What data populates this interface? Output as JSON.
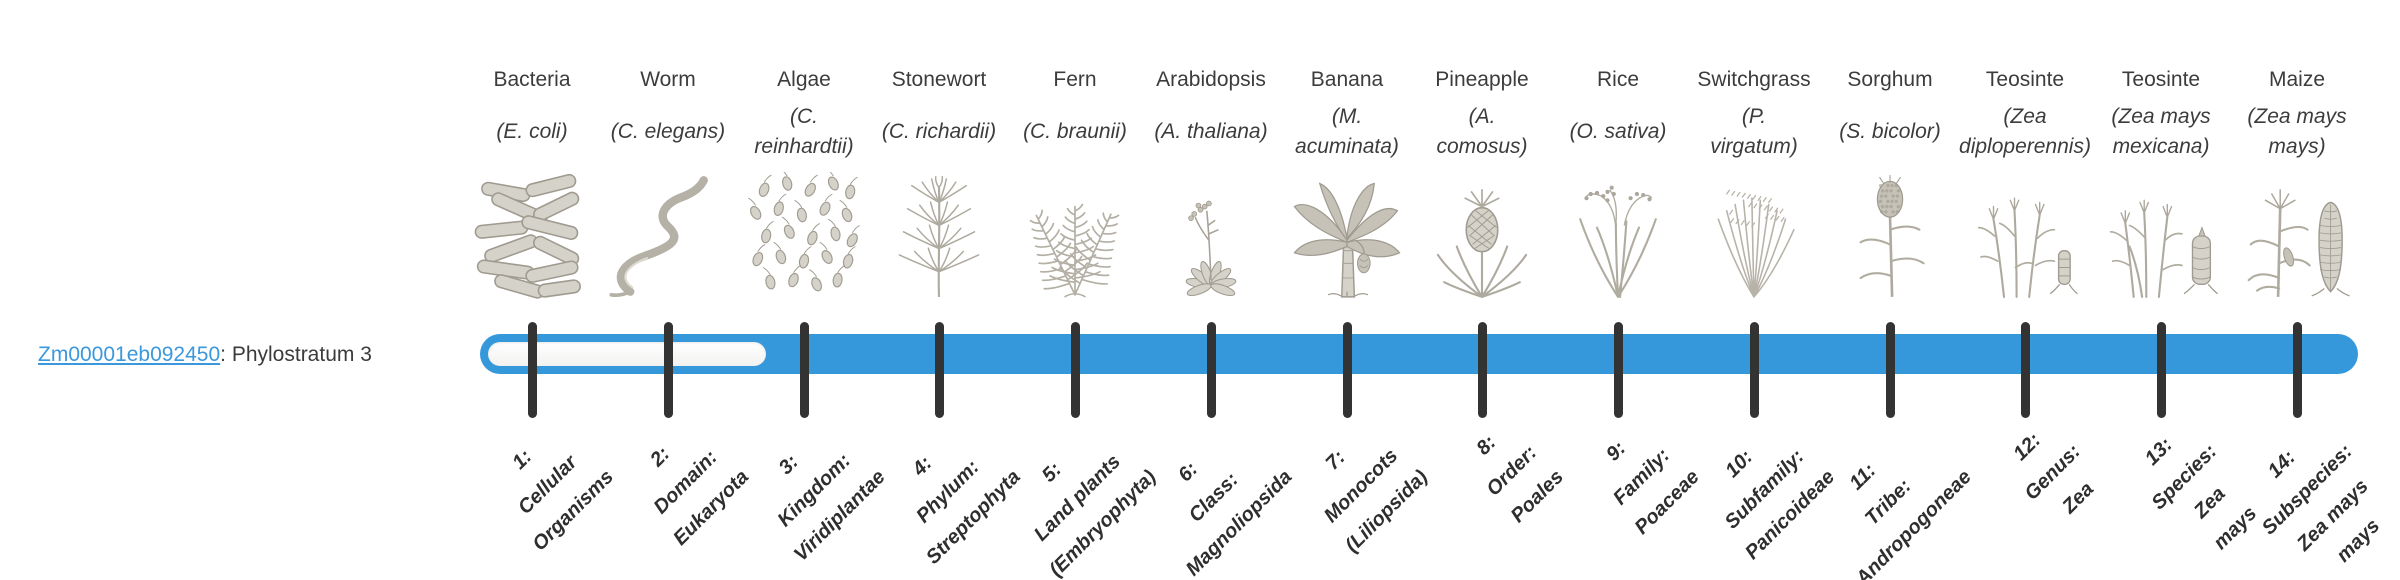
{
  "page": {
    "background": "#ffffff"
  },
  "gene_panel": {
    "gene_id": "Zm00001eb092450",
    "assignment_suffix": ": Phylostratum 3",
    "link_color": "#3b98dd"
  },
  "chart_data": {
    "type": "phylostratigraphy-timeline",
    "gene": "Zm00001eb092450",
    "gene_phylostratum": 3,
    "strata_count": 14,
    "bar": {
      "filled_color": "#3498db",
      "unfilled_color": "#ffffff",
      "tick_color": "#333333",
      "unfilled_strata": [
        1,
        2
      ],
      "filled_strata_range": [
        3,
        14
      ]
    },
    "columns": [
      {
        "organism": "Bacteria",
        "species_lines": [
          "(E. coli)"
        ],
        "icon": "bacteria-icon",
        "stratum_lines": [
          "1:",
          "Cellular",
          "Organisms"
        ]
      },
      {
        "organism": "Worm",
        "species_lines": [
          "(C. elegans)"
        ],
        "icon": "worm-icon",
        "stratum_lines": [
          "2:",
          "Domain:",
          "Eukaryota"
        ]
      },
      {
        "organism": "Algae",
        "species_lines": [
          "(C.",
          "reinhardtii)"
        ],
        "icon": "algae-icon",
        "stratum_lines": [
          "3:",
          "Kingdom:",
          "Viridiplantae"
        ]
      },
      {
        "organism": "Stonewort",
        "species_lines": [
          "(C. richardii)"
        ],
        "icon": "stonewort-icon",
        "stratum_lines": [
          "4:",
          "Phylum:",
          "Streptophyta"
        ]
      },
      {
        "organism": "Fern",
        "species_lines": [
          "(C. braunii)"
        ],
        "icon": "fern-icon",
        "stratum_lines": [
          "5:",
          "Land plants",
          "(Embryophyta)"
        ]
      },
      {
        "organism": "Arabidopsis",
        "species_lines": [
          "(A. thaliana)"
        ],
        "icon": "arabidopsis-icon",
        "stratum_lines": [
          "6:",
          "Class:",
          "Magnoliopsida"
        ]
      },
      {
        "organism": "Banana",
        "species_lines": [
          "(M.",
          "acuminata)"
        ],
        "icon": "banana-icon",
        "stratum_lines": [
          "7:",
          "Monocots",
          "(Liliopsida)"
        ]
      },
      {
        "organism": "Pineapple",
        "species_lines": [
          "(A.",
          "comosus)"
        ],
        "icon": "pineapple-icon",
        "stratum_lines": [
          "8:",
          "Order:",
          "Poales"
        ]
      },
      {
        "organism": "Rice",
        "species_lines": [
          "(O. sativa)"
        ],
        "icon": "rice-icon",
        "stratum_lines": [
          "9:",
          "Family:",
          "Poaceae"
        ]
      },
      {
        "organism": "Switchgrass",
        "species_lines": [
          "(P.",
          "virgatum)"
        ],
        "icon": "switchgrass-icon",
        "stratum_lines": [
          "10:",
          "Subfamily:",
          "Panicoideae"
        ]
      },
      {
        "organism": "Sorghum",
        "species_lines": [
          "(S. bicolor)"
        ],
        "icon": "sorghum-icon",
        "stratum_lines": [
          "11:",
          "Tribe:",
          "Andropogoneae"
        ]
      },
      {
        "organism": "Teosinte",
        "species_lines": [
          "(Zea",
          "diploperennis)"
        ],
        "icon": "teosinte-diploperennis-icon",
        "stratum_lines": [
          "12:",
          "Genus:",
          "Zea"
        ]
      },
      {
        "organism": "Teosinte",
        "species_lines": [
          "(Zea mays",
          "mexicana)"
        ],
        "icon": "teosinte-mexicana-icon",
        "stratum_lines": [
          "13:",
          "Species:",
          "Zea",
          "mays"
        ]
      },
      {
        "organism": "Maize",
        "species_lines": [
          "(Zea mays",
          "mays)"
        ],
        "icon": "maize-icon",
        "stratum_lines": [
          "14:",
          "Subspecies:",
          "Zea mays",
          "mays"
        ]
      }
    ]
  }
}
